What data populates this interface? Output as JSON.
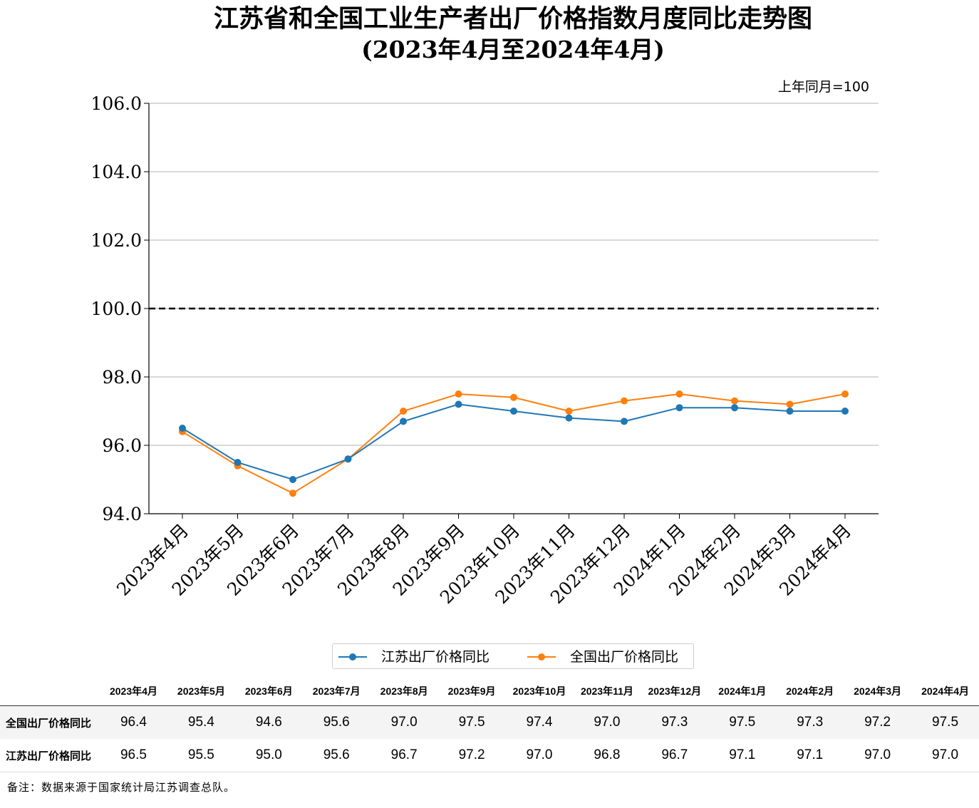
{
  "header": {
    "title": "江苏省和全国工业生产者出厂价格指数月度同比走势图",
    "subtitle": "(2023年4月至2024年4月)",
    "unit_note": "上年同月=100"
  },
  "chart_data": {
    "type": "line",
    "categories": [
      "2023年4月",
      "2023年5月",
      "2023年6月",
      "2023年7月",
      "2023年8月",
      "2023年9月",
      "2023年10月",
      "2023年11月",
      "2023年12月",
      "2024年1月",
      "2024年2月",
      "2024年3月",
      "2024年4月"
    ],
    "series": [
      {
        "name": "江苏出厂价格同比",
        "color": "#1f77b4",
        "values": [
          96.5,
          95.5,
          95.0,
          95.6,
          96.7,
          97.2,
          97.0,
          96.8,
          96.7,
          97.1,
          97.1,
          97.0,
          97.0
        ]
      },
      {
        "name": "全国出厂价格同比",
        "color": "#ff7f0e",
        "values": [
          96.4,
          95.4,
          94.6,
          95.6,
          97.0,
          97.5,
          97.4,
          97.0,
          97.3,
          97.5,
          97.3,
          97.2,
          97.5
        ]
      }
    ],
    "ylim": [
      94.0,
      106.0
    ],
    "yticks": [
      "94.0",
      "96.0",
      "98.0",
      "100.0",
      "102.0",
      "104.0",
      "106.0"
    ],
    "reference_line": 100.0,
    "grid": "horizontal",
    "legend_position": "bottom-center"
  },
  "table": {
    "columns": [
      "2023年4月",
      "2023年5月",
      "2023年6月",
      "2023年7月",
      "2023年8月",
      "2023年9月",
      "2023年10月",
      "2023年11月",
      "2023年12月",
      "2024年1月",
      "2024年2月",
      "2024年3月",
      "2024年4月"
    ],
    "rows": [
      {
        "label": "全国出厂价格同比",
        "values": [
          "96.4",
          "95.4",
          "94.6",
          "95.6",
          "97.0",
          "97.5",
          "97.4",
          "97.0",
          "97.3",
          "97.5",
          "97.3",
          "97.2",
          "97.5"
        ]
      },
      {
        "label": "江苏出厂价格同比",
        "values": [
          "96.5",
          "95.5",
          "95.0",
          "95.6",
          "96.7",
          "97.2",
          "97.0",
          "96.8",
          "96.7",
          "97.1",
          "97.1",
          "97.0",
          "97.0"
        ]
      }
    ]
  },
  "footnote": "备注：数据来源于国家统计局江苏调查总队。"
}
